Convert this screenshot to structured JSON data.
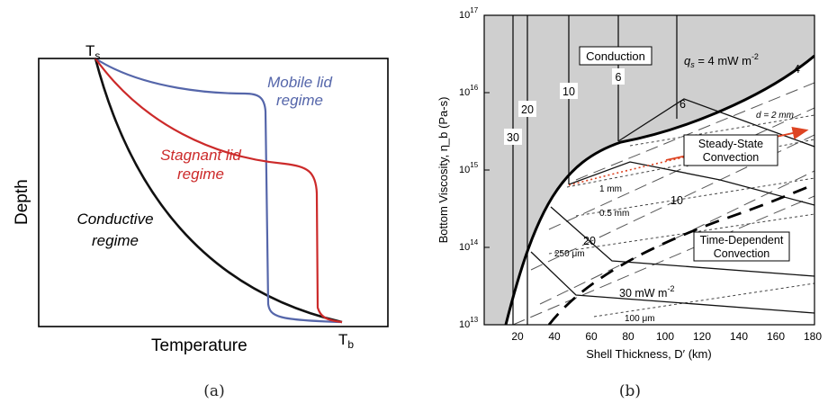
{
  "panel_a": {
    "caption": "(a)",
    "t_surface": "T",
    "t_surface_sub": "s",
    "t_bottom": "T",
    "t_bottom_sub": "b",
    "x_label": "Temperature",
    "y_label": "Depth",
    "mobile_line1": "Mobile lid",
    "mobile_line2": "regime",
    "stagnant_line1": "Stagnant lid",
    "stagnant_line2": "regime",
    "conductive_line1": "Conductive",
    "conductive_line2": "regime",
    "colors": {
      "mobile": "#5566aa",
      "stagnant": "#cc2a2a",
      "conductive": "#111111"
    }
  },
  "panel_b": {
    "caption": "(b)",
    "x_label": "Shell Thickness, D′ (km)",
    "y_label": "Bottom Viscosity, η_b (Pa-s)",
    "x_ticks": [
      "20",
      "40",
      "60",
      "80",
      "100",
      "120",
      "140",
      "160",
      "180"
    ],
    "y_ticks": [
      {
        "base": "10",
        "exp": "13"
      },
      {
        "base": "10",
        "exp": "14"
      },
      {
        "base": "10",
        "exp": "15"
      },
      {
        "base": "10",
        "exp": "16"
      },
      {
        "base": "10",
        "exp": "17"
      }
    ],
    "region_conduction": "Conduction",
    "region_steady_line1": "Steady-State",
    "region_steady_line2": "Convection",
    "region_time_line1": "Time-Dependent",
    "region_time_line2": "Convection",
    "qs_label": "q",
    "qs_sub": "s",
    "qs_rest": " = 4 mW m",
    "qs_exp": "-2",
    "flux_labels": {
      "v30": "30",
      "v20": "20",
      "v10": "10",
      "v6": "6",
      "c4": "4",
      "c6": "6",
      "c10": "10",
      "c20": "20",
      "c30": "30 mW m",
      "c30_exp": "-2"
    },
    "grain_labels": {
      "d2": "d = 2 mm",
      "d1": "1 mm",
      "d05": "0.5 mm",
      "d250": "250 μm",
      "d100": "100 μm"
    },
    "colors": {
      "conduction_fill": "#cfcfcf",
      "arrow": "#dd4422"
    }
  }
}
